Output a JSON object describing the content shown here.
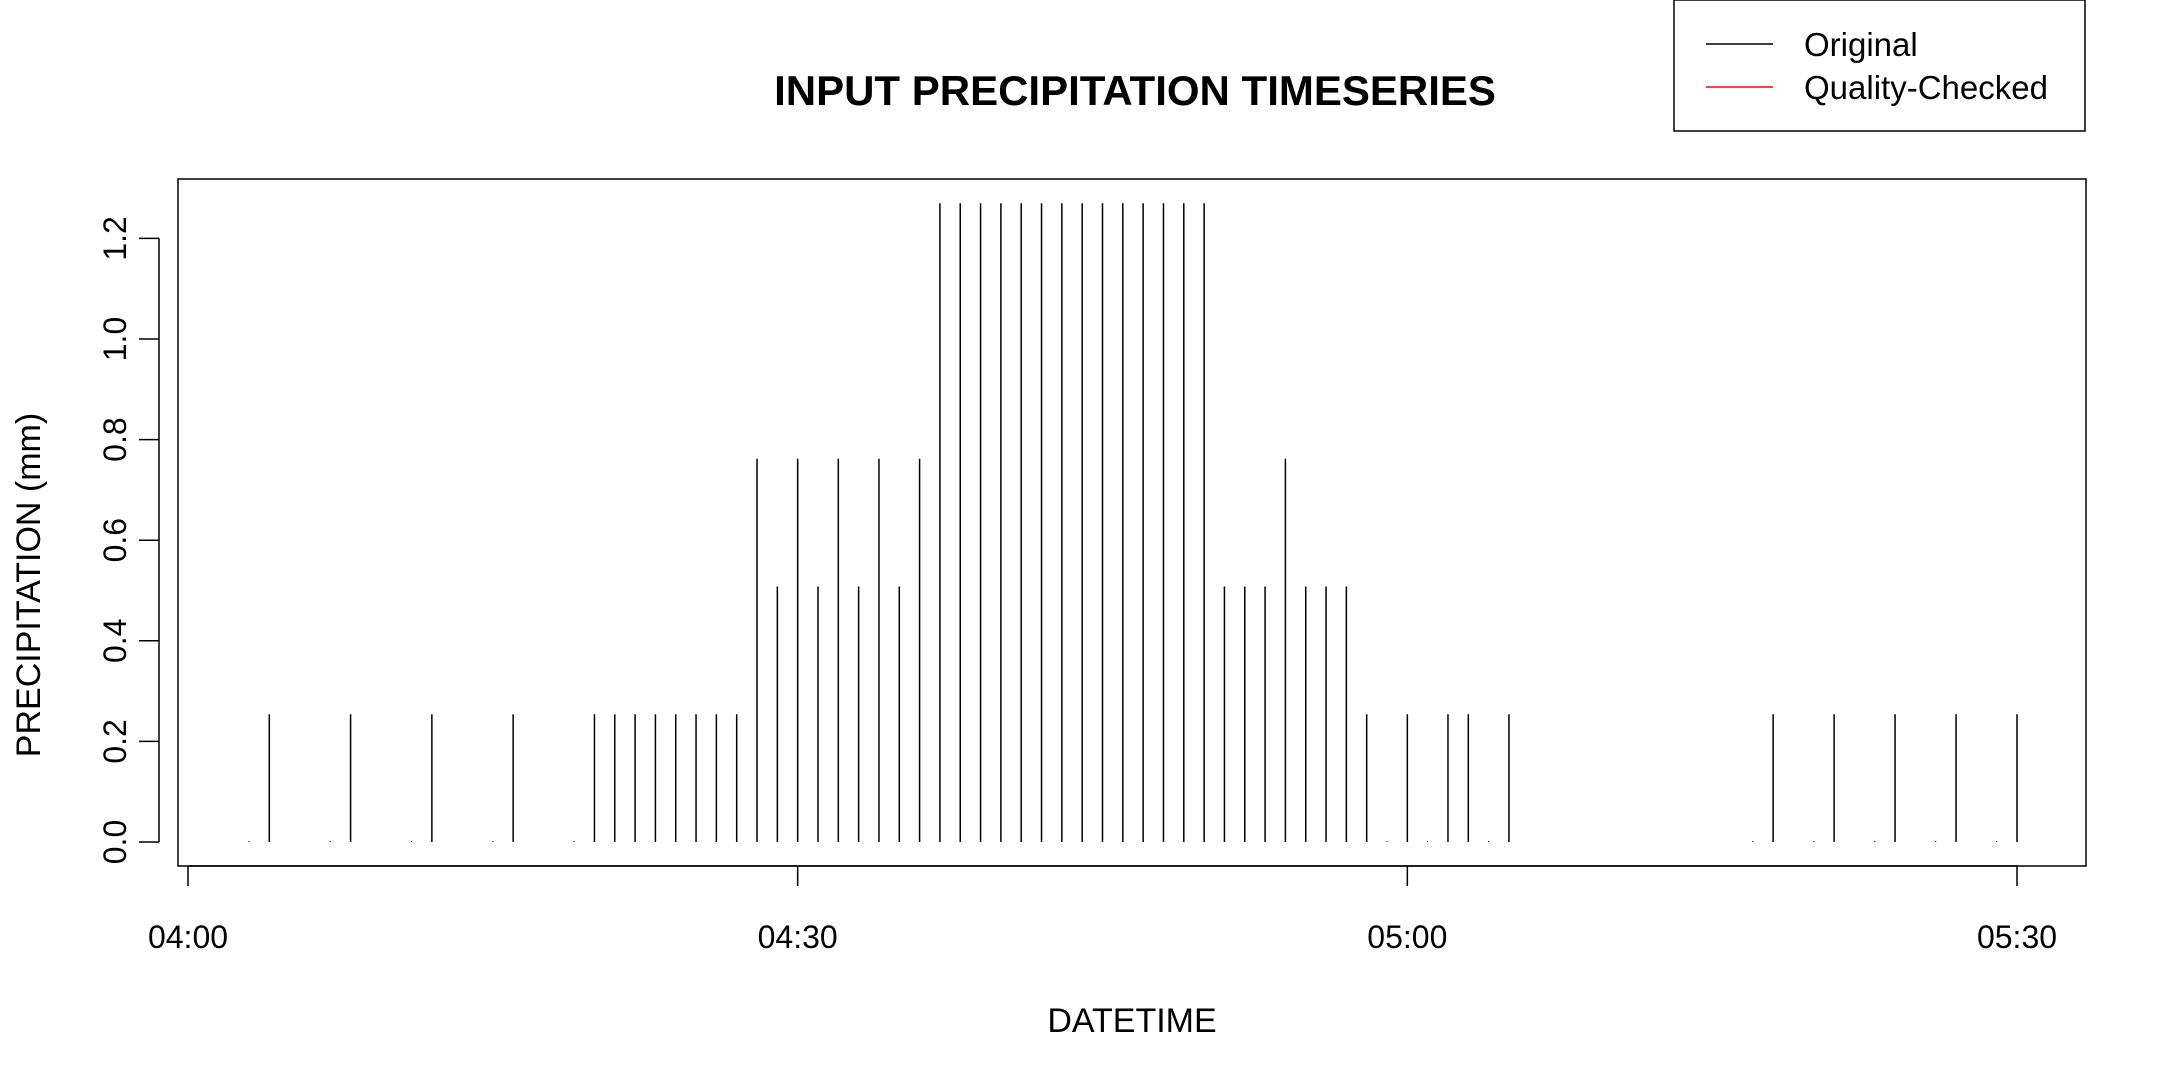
{
  "chart_data": {
    "type": "bar",
    "title": "INPUT PRECIPITATION TIMESERIES",
    "xlabel": "DATETIME",
    "ylabel": "PRECIPITATION (mm)",
    "x_tick_labels": [
      "04:00",
      "04:30",
      "05:00",
      "05:30"
    ],
    "y_tick_labels": [
      "0.0",
      "0.2",
      "0.4",
      "0.6",
      "0.8",
      "1.0",
      "1.2"
    ],
    "ylim": [
      0,
      1.3
    ],
    "xlim": [
      "04:00",
      "05:30"
    ],
    "grid": false,
    "legend_position": "top-right",
    "legend": [
      {
        "name": "Original",
        "color": "#000000"
      },
      {
        "name": "Quality-Checked",
        "color": "#ff0000"
      }
    ],
    "series": [
      {
        "name": "Original",
        "color": "#000000",
        "x": [
          "04:03",
          "04:04",
          "04:07",
          "04:08",
          "04:11",
          "04:12",
          "04:15",
          "04:16",
          "04:19",
          "04:20",
          "04:21",
          "04:22",
          "04:23",
          "04:24",
          "04:25",
          "04:26",
          "04:27",
          "04:28",
          "04:29",
          "04:30",
          "04:31",
          "04:32",
          "04:33",
          "04:34",
          "04:35",
          "04:36",
          "04:37",
          "04:38",
          "04:39",
          "04:40",
          "04:41",
          "04:42",
          "04:43",
          "04:44",
          "04:45",
          "04:46",
          "04:47",
          "04:48",
          "04:49",
          "04:50",
          "04:51",
          "04:52",
          "04:53",
          "04:54",
          "04:55",
          "04:56",
          "04:57",
          "04:58",
          "04:59",
          "05:00",
          "05:01",
          "05:02",
          "05:03",
          "05:04",
          "05:05",
          "05:17",
          "05:18",
          "05:20",
          "05:21",
          "05:23",
          "05:24",
          "05:26",
          "05:27",
          "05:29",
          "05:30"
        ],
        "values": [
          0.0,
          0.254,
          0.0,
          0.254,
          0.0,
          0.254,
          0.0,
          0.254,
          0.0,
          0.254,
          0.254,
          0.254,
          0.254,
          0.254,
          0.254,
          0.254,
          0.254,
          0.762,
          0.508,
          0.762,
          0.508,
          0.762,
          0.508,
          0.762,
          0.508,
          0.762,
          1.27,
          1.27,
          1.27,
          1.27,
          1.27,
          1.27,
          1.27,
          1.27,
          1.27,
          1.27,
          1.27,
          1.27,
          1.27,
          1.27,
          0.508,
          0.508,
          0.508,
          0.762,
          0.508,
          0.508,
          0.508,
          0.254,
          0.0,
          0.254,
          0.0,
          0.254,
          0.254,
          0.0,
          0.254,
          0.0,
          0.254,
          0.0,
          0.254,
          0.0,
          0.254,
          0.0,
          0.254,
          0.0,
          0.254
        ]
      }
    ]
  }
}
